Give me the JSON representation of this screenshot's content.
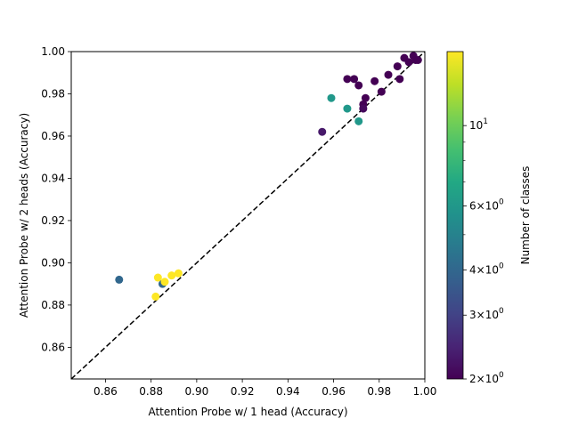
{
  "chart_data": {
    "type": "scatter",
    "xlabel": "Attention Probe w/ 1 head (Accuracy)",
    "ylabel": "Attention Probe w/ 2 heads (Accuracy)",
    "xlim": [
      0.845,
      1.0
    ],
    "ylim": [
      0.845,
      1.0
    ],
    "xticks": [
      "0.86",
      "0.88",
      "0.90",
      "0.92",
      "0.94",
      "0.96",
      "0.98",
      "1.00"
    ],
    "yticks": [
      "0.86",
      "0.88",
      "0.90",
      "0.92",
      "0.94",
      "0.96",
      "0.98",
      "1.00"
    ],
    "reference_line": "y = x (dashed, black)",
    "grid": false,
    "colormap": "viridis",
    "color_scale": "log",
    "colorbar": {
      "label": "Number of classes",
      "range": [
        2,
        16
      ],
      "ticks": [
        {
          "value": 2,
          "base": "2",
          "exp": "0"
        },
        {
          "value": 3,
          "base": "3",
          "exp": "0"
        },
        {
          "value": 4,
          "base": "4",
          "exp": "0"
        },
        {
          "value": 6,
          "base": "6",
          "exp": "0"
        },
        {
          "value": 10,
          "base": "10",
          "exp": "1"
        }
      ]
    },
    "points": [
      {
        "x": 0.866,
        "y": 0.892,
        "c": 4
      },
      {
        "x": 0.885,
        "y": 0.89,
        "c": 4
      },
      {
        "x": 0.883,
        "y": 0.893,
        "c": 16
      },
      {
        "x": 0.886,
        "y": 0.891,
        "c": 16
      },
      {
        "x": 0.889,
        "y": 0.894,
        "c": 16
      },
      {
        "x": 0.892,
        "y": 0.895,
        "c": 16
      },
      {
        "x": 0.882,
        "y": 0.884,
        "c": 16
      },
      {
        "x": 0.955,
        "y": 0.962,
        "c": 2.3
      },
      {
        "x": 0.959,
        "y": 0.978,
        "c": 6
      },
      {
        "x": 0.966,
        "y": 0.973,
        "c": 6
      },
      {
        "x": 0.971,
        "y": 0.967,
        "c": 6
      },
      {
        "x": 0.966,
        "y": 0.987,
        "c": 2
      },
      {
        "x": 0.969,
        "y": 0.987,
        "c": 2
      },
      {
        "x": 0.971,
        "y": 0.984,
        "c": 2
      },
      {
        "x": 0.973,
        "y": 0.975,
        "c": 2
      },
      {
        "x": 0.973,
        "y": 0.973,
        "c": 2.1
      },
      {
        "x": 0.974,
        "y": 0.978,
        "c": 2
      },
      {
        "x": 0.978,
        "y": 0.986,
        "c": 2
      },
      {
        "x": 0.981,
        "y": 0.981,
        "c": 2
      },
      {
        "x": 0.984,
        "y": 0.989,
        "c": 2
      },
      {
        "x": 0.988,
        "y": 0.993,
        "c": 2
      },
      {
        "x": 0.989,
        "y": 0.987,
        "c": 2
      },
      {
        "x": 0.991,
        "y": 0.997,
        "c": 2
      },
      {
        "x": 0.993,
        "y": 0.995,
        "c": 2
      },
      {
        "x": 0.995,
        "y": 0.998,
        "c": 2
      },
      {
        "x": 0.996,
        "y": 0.996,
        "c": 2
      },
      {
        "x": 0.997,
        "y": 0.996,
        "c": 2
      }
    ]
  }
}
